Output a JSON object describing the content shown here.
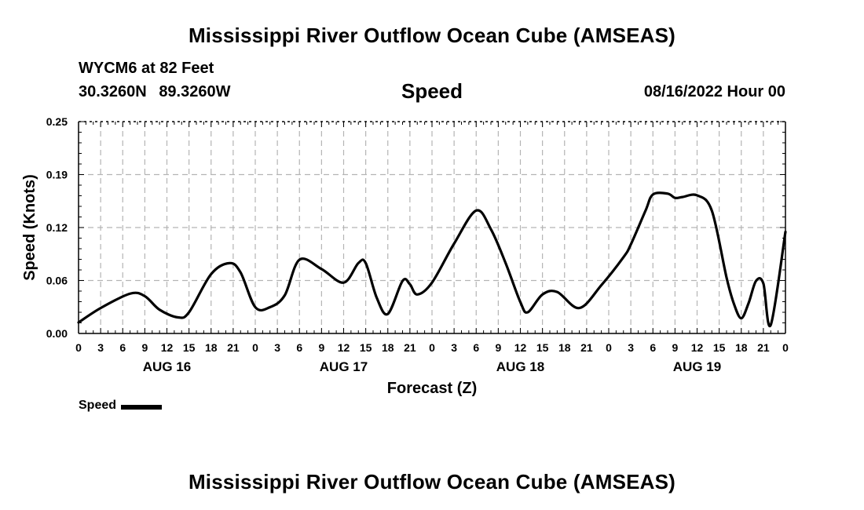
{
  "header": {
    "title": "Mississippi River Outflow Ocean Cube (AMSEAS)",
    "station": "WYCM6 at 82 Feet",
    "lat": "30.3260N",
    "lon": "89.3260W",
    "panel_title": "Speed",
    "date": "08/16/2022 Hour 00"
  },
  "footer": {
    "title": "Mississippi River Outflow Ocean Cube (AMSEAS)"
  },
  "legend": {
    "label": "Speed"
  },
  "chart_data": {
    "type": "line",
    "title": "Speed",
    "xlabel": "Forecast (Z)",
    "ylabel": "Speed (Knots)",
    "xlim": [
      0,
      96
    ],
    "ylim": [
      0,
      0.25
    ],
    "yticks": [
      "0.00",
      "0.06",
      "0.12",
      "0.19",
      "0.25"
    ],
    "xtick_labels": [
      "0",
      "3",
      "6",
      "9",
      "12",
      "15",
      "18",
      "21",
      "0",
      "3",
      "6",
      "9",
      "12",
      "15",
      "18",
      "21",
      "0",
      "3",
      "6",
      "9",
      "12",
      "15",
      "18",
      "21",
      "0",
      "3",
      "6",
      "9",
      "12",
      "15",
      "18",
      "21",
      "0"
    ],
    "day_labels": [
      "AUG 16",
      "AUG 17",
      "AUG 18",
      "AUG 19"
    ],
    "grid": true,
    "legend_position": "bottom-left",
    "series": [
      {
        "name": "Speed",
        "color": "#000000",
        "x": [
          0,
          3,
          7,
          9,
          11,
          13.5,
          15,
          18,
          20.5,
          22,
          24,
          26,
          28,
          30,
          33,
          36,
          38,
          39,
          40.5,
          42,
          44,
          45,
          46,
          48,
          51,
          54,
          56,
          58,
          60,
          61,
          63,
          65,
          68,
          71,
          74,
          75,
          77,
          78,
          80,
          81,
          82,
          84,
          86,
          88,
          89,
          90,
          91,
          92,
          93,
          94,
          96
        ],
        "values": [
          0.013,
          0.03,
          0.047,
          0.044,
          0.028,
          0.019,
          0.025,
          0.07,
          0.083,
          0.072,
          0.031,
          0.031,
          0.045,
          0.087,
          0.076,
          0.06,
          0.083,
          0.083,
          0.042,
          0.023,
          0.062,
          0.058,
          0.046,
          0.06,
          0.106,
          0.145,
          0.123,
          0.083,
          0.037,
          0.025,
          0.046,
          0.049,
          0.03,
          0.057,
          0.09,
          0.105,
          0.145,
          0.164,
          0.165,
          0.16,
          0.161,
          0.163,
          0.145,
          0.066,
          0.035,
          0.018,
          0.036,
          0.062,
          0.059,
          0.01,
          0.12
        ]
      }
    ]
  }
}
